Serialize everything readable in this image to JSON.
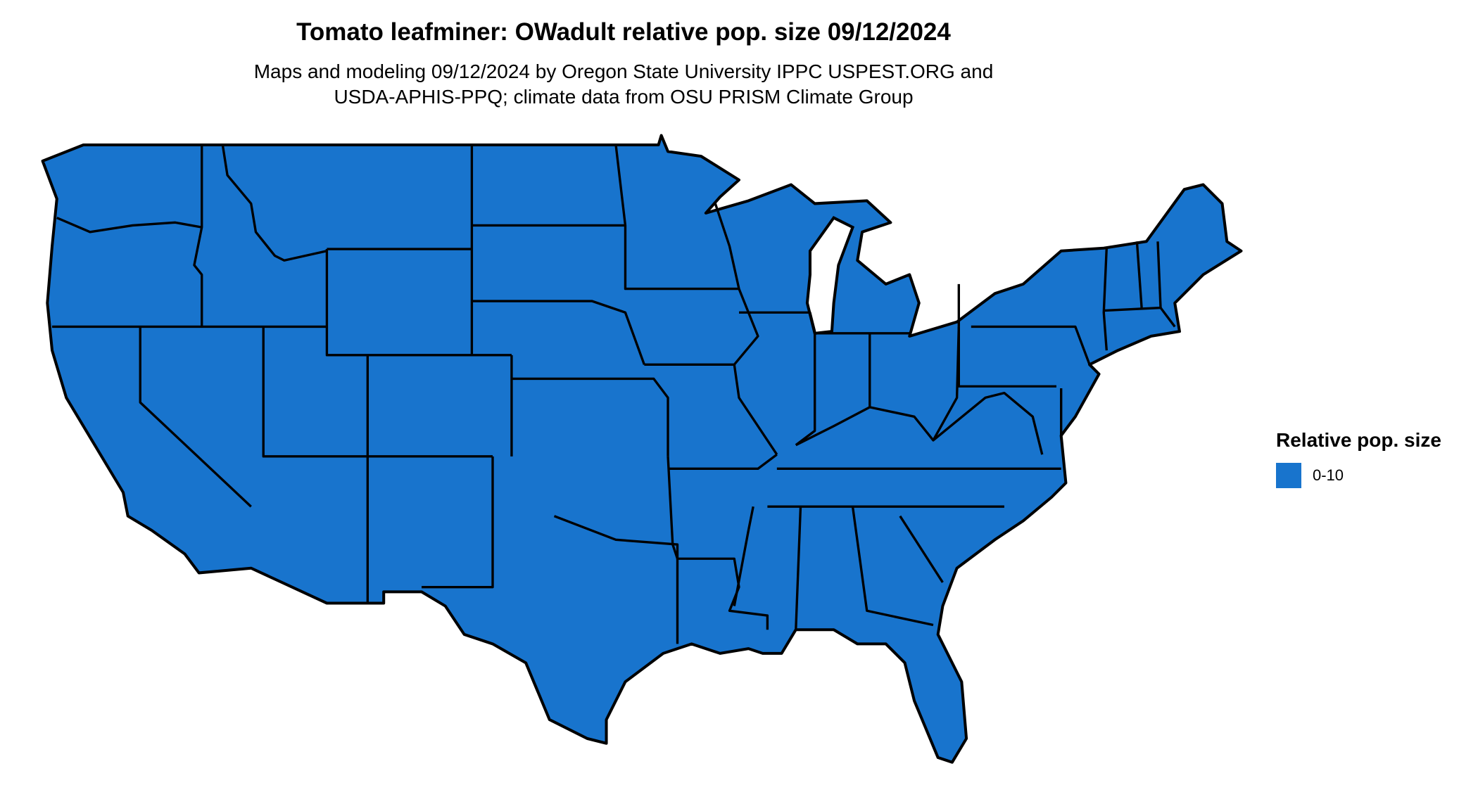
{
  "title": "Tomato leafminer: OWadult relative pop. size 09/12/2024",
  "subtitle_line1": "Maps and modeling 09/12/2024 by Oregon State University IPPC USPEST.ORG and",
  "subtitle_line2": "USDA-APHIS-PPQ; climate data from OSU PRISM Climate Group",
  "map": {
    "region": "Contiguous United States",
    "fill_color": "#1874CD",
    "border_color": "#000000"
  },
  "legend": {
    "title": "Relative pop. size",
    "items": [
      {
        "label": "0-10",
        "color": "#1874CD"
      }
    ]
  }
}
